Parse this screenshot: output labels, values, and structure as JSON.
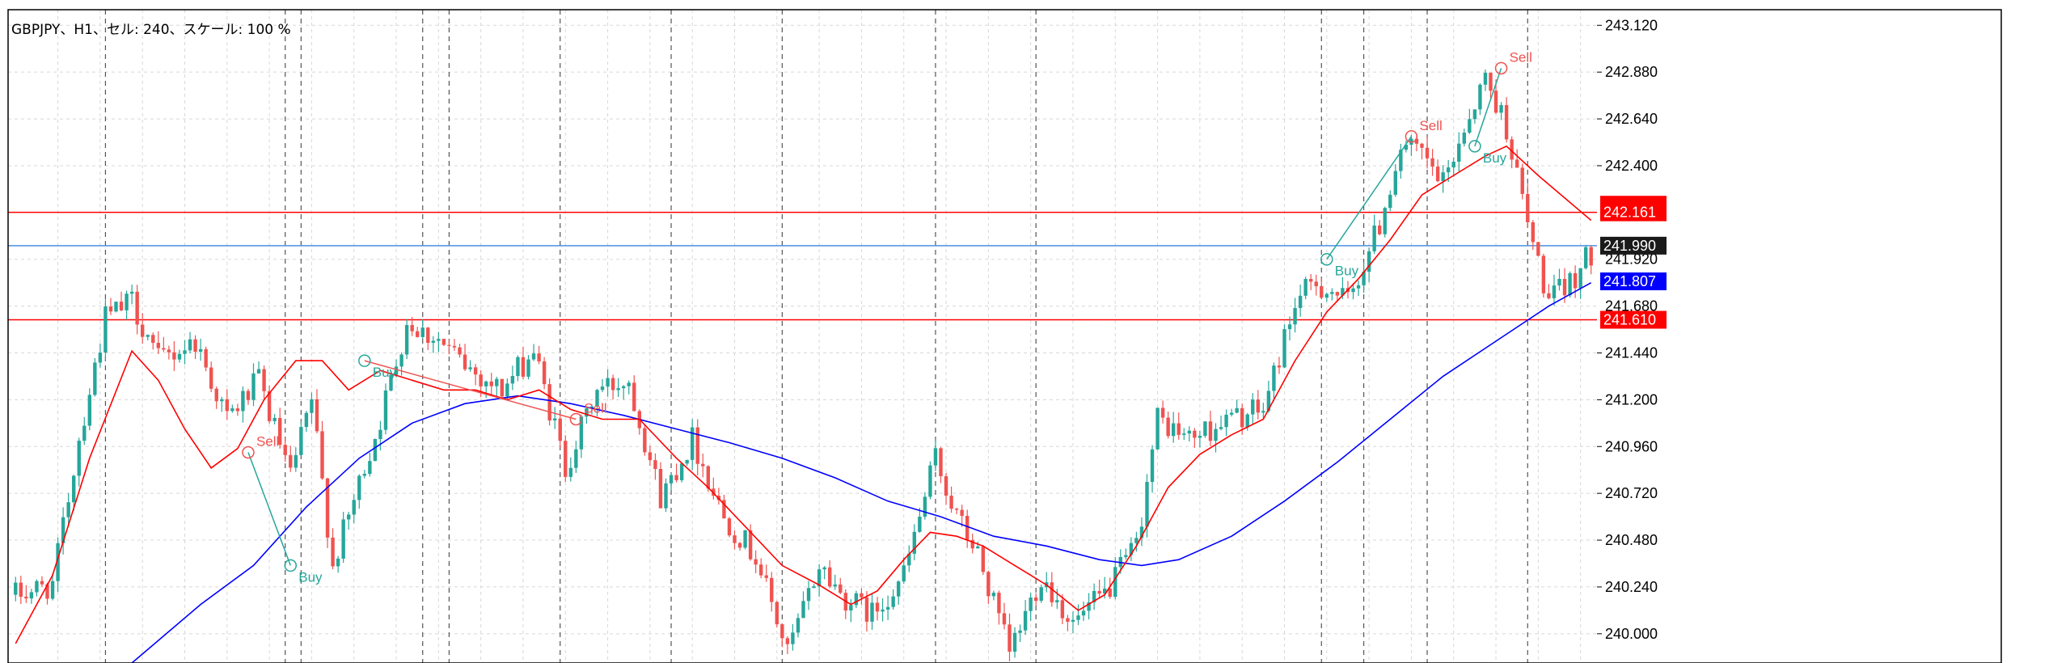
{
  "header": {
    "info": "GBPJPY、H1、セル: 240、スケール: 100 %"
  },
  "colors": {
    "bull": "#26a69a",
    "bear": "#ef5350",
    "ma_fast": "#ff0000",
    "ma_slow": "#0000ff",
    "level_line": "#ff0000",
    "price_line": "#4a90e2",
    "grid": "#d8d8d8",
    "separator": "#555555"
  },
  "chart_data": {
    "type": "candlestick",
    "symbol": "GBPJPY",
    "timeframe": "H1",
    "grid": true,
    "ylim": [
      239.85,
      243.2
    ],
    "y_ticks": [
      "243.120",
      "242.880",
      "242.640",
      "242.400",
      "241.440",
      "241.200",
      "240.960",
      "240.720",
      "240.480",
      "240.240",
      "240.000"
    ],
    "y_ticks_partial": [
      {
        "label": "241.920",
        "value": 241.92
      },
      {
        "label": "241.680",
        "value": 241.68
      }
    ],
    "period_separators_count": 14,
    "anchors": [
      [
        0,
        240.2
      ],
      [
        7,
        240.25
      ],
      [
        12,
        241.0
      ],
      [
        17,
        241.62
      ],
      [
        22,
        241.7
      ],
      [
        27,
        241.4
      ],
      [
        34,
        241.5
      ],
      [
        40,
        241.1
      ],
      [
        46,
        241.3
      ],
      [
        52,
        240.8
      ],
      [
        56,
        241.2
      ],
      [
        60,
        240.35
      ],
      [
        63,
        240.6
      ],
      [
        69,
        241.1
      ],
      [
        74,
        241.6
      ],
      [
        80,
        241.5
      ],
      [
        86,
        241.35
      ],
      [
        92,
        241.25
      ],
      [
        98,
        241.45
      ],
      [
        104,
        240.85
      ],
      [
        110,
        241.25
      ],
      [
        116,
        241.3
      ],
      [
        122,
        240.7
      ],
      [
        128,
        241.0
      ],
      [
        134,
        240.6
      ],
      [
        140,
        240.4
      ],
      [
        146,
        239.9
      ],
      [
        152,
        240.35
      ],
      [
        156,
        240.2
      ],
      [
        162,
        240.1
      ],
      [
        168,
        240.3
      ],
      [
        174,
        240.9
      ],
      [
        178,
        240.6
      ],
      [
        182,
        240.4
      ],
      [
        188,
        239.9
      ],
      [
        194,
        240.3
      ],
      [
        200,
        240.05
      ],
      [
        206,
        240.2
      ],
      [
        212,
        240.45
      ],
      [
        216,
        241.1
      ],
      [
        222,
        241.0
      ],
      [
        230,
        241.1
      ],
      [
        236,
        241.15
      ],
      [
        242,
        241.7
      ],
      [
        246,
        241.8
      ],
      [
        252,
        241.7
      ],
      [
        258,
        242.1
      ],
      [
        262,
        242.5
      ],
      [
        266,
        242.45
      ],
      [
        270,
        242.3
      ],
      [
        274,
        242.6
      ],
      [
        278,
        242.85
      ],
      [
        282,
        242.6
      ],
      [
        286,
        242.1
      ],
      [
        290,
        241.7
      ],
      [
        294,
        241.8
      ],
      [
        298,
        241.95
      ]
    ],
    "ma_fast_points": [
      [
        0,
        239.95
      ],
      [
        7,
        240.3
      ],
      [
        14,
        240.9
      ],
      [
        22,
        241.45
      ],
      [
        27,
        241.3
      ],
      [
        32,
        241.05
      ],
      [
        37,
        240.85
      ],
      [
        42,
        240.95
      ],
      [
        47,
        241.2
      ],
      [
        53,
        241.4
      ],
      [
        58,
        241.4
      ],
      [
        63,
        241.25
      ],
      [
        69,
        241.35
      ],
      [
        75,
        241.3
      ],
      [
        81,
        241.25
      ],
      [
        87,
        241.25
      ],
      [
        93,
        241.2
      ],
      [
        99,
        241.25
      ],
      [
        105,
        241.15
      ],
      [
        111,
        241.1
      ],
      [
        118,
        241.1
      ],
      [
        125,
        240.9
      ],
      [
        131,
        240.75
      ],
      [
        138,
        240.55
      ],
      [
        145,
        240.35
      ],
      [
        152,
        240.25
      ],
      [
        158,
        240.15
      ],
      [
        163,
        240.22
      ],
      [
        168,
        240.38
      ],
      [
        173,
        240.52
      ],
      [
        178,
        240.5
      ],
      [
        183,
        240.45
      ],
      [
        189,
        240.35
      ],
      [
        195,
        240.25
      ],
      [
        201,
        240.12
      ],
      [
        206,
        240.2
      ],
      [
        212,
        240.45
      ],
      [
        218,
        240.75
      ],
      [
        224,
        240.92
      ],
      [
        230,
        241.02
      ],
      [
        236,
        241.1
      ],
      [
        242,
        241.4
      ],
      [
        248,
        241.65
      ],
      [
        254,
        241.82
      ],
      [
        260,
        242.02
      ],
      [
        266,
        242.25
      ],
      [
        272,
        242.35
      ],
      [
        278,
        242.45
      ],
      [
        282,
        242.5
      ],
      [
        288,
        242.35
      ],
      [
        298,
        242.12
      ]
    ],
    "ma_slow_points": [
      [
        22,
        239.85
      ],
      [
        35,
        240.15
      ],
      [
        45,
        240.35
      ],
      [
        55,
        240.65
      ],
      [
        65,
        240.9
      ],
      [
        75,
        241.08
      ],
      [
        85,
        241.18
      ],
      [
        95,
        241.22
      ],
      [
        105,
        241.18
      ],
      [
        115,
        241.12
      ],
      [
        125,
        241.05
      ],
      [
        135,
        240.98
      ],
      [
        145,
        240.9
      ],
      [
        155,
        240.8
      ],
      [
        165,
        240.68
      ],
      [
        175,
        240.6
      ],
      [
        185,
        240.5
      ],
      [
        195,
        240.45
      ],
      [
        205,
        240.38
      ],
      [
        213,
        240.35
      ],
      [
        220,
        240.38
      ],
      [
        230,
        240.5
      ],
      [
        240,
        240.68
      ],
      [
        250,
        240.88
      ],
      [
        260,
        241.1
      ],
      [
        270,
        241.32
      ],
      [
        280,
        241.5
      ],
      [
        290,
        241.68
      ],
      [
        298,
        241.8
      ]
    ],
    "horizontal_lines": [
      {
        "name": "resistance",
        "value": 242.161,
        "label": "242.161",
        "color": "#ff0000"
      },
      {
        "name": "current-bid",
        "value": 241.99,
        "label": "241.990",
        "color": "#4a90e2"
      },
      {
        "name": "support",
        "value": 241.61,
        "label": "241.610",
        "color": "#ff0000"
      }
    ],
    "price_tags": [
      {
        "name": "resistance-tag",
        "value": 242.161,
        "label": "242.161",
        "bg": "#ff0000",
        "fg": "#ffffff"
      },
      {
        "name": "bid-tag",
        "value": 241.99,
        "label": "241.990",
        "bg": "#1a1a1a",
        "fg": "#ffffff"
      },
      {
        "name": "ma-slow-tag",
        "value": 241.807,
        "label": "241.807",
        "bg": "#0000ff",
        "fg": "#ffffff"
      },
      {
        "name": "support-tag",
        "value": 241.61,
        "label": "241.610",
        "bg": "#ff0000",
        "fg": "#ffffff"
      }
    ],
    "tags_partial": [
      {
        "name": "hidden-red-tag",
        "value": 242.2,
        "bg": "#ff0000"
      }
    ],
    "annotations": [
      {
        "text": "Sell",
        "idx": 44,
        "price": 240.93,
        "color": "#ef5350",
        "circle": true
      },
      {
        "text": "Buy",
        "idx": 52,
        "price": 240.35,
        "color": "#26a69a",
        "circle": true
      },
      {
        "text": "Buy",
        "idx": 66,
        "price": 241.4,
        "color": "#26a69a",
        "circle": true
      },
      {
        "text": "Sell",
        "idx": 106,
        "price": 241.1,
        "color": "#ef5350",
        "circle": true
      },
      {
        "text": "Buy",
        "idx": 248,
        "price": 241.92,
        "color": "#26a69a",
        "circle": true
      },
      {
        "text": "Sell",
        "idx": 264,
        "price": 242.55,
        "color": "#ef5350",
        "circle": true
      },
      {
        "text": "Buy",
        "idx": 276,
        "price": 242.5,
        "color": "#26a69a",
        "circle": true
      },
      {
        "text": "Sell",
        "idx": 281,
        "price": 242.9,
        "color": "#ef5350",
        "circle": true
      }
    ],
    "signal_links": [
      {
        "from": [
          44,
          240.93
        ],
        "to": [
          52,
          240.35
        ],
        "color": "#26a69a"
      },
      {
        "from": [
          66,
          241.4
        ],
        "to": [
          106,
          241.1
        ],
        "color": "#ef5350"
      },
      {
        "from": [
          248,
          241.92
        ],
        "to": [
          264,
          242.55
        ],
        "color": "#26a69a"
      },
      {
        "from": [
          276,
          242.5
        ],
        "to": [
          281,
          242.9
        ],
        "color": "#26a69a"
      }
    ]
  }
}
